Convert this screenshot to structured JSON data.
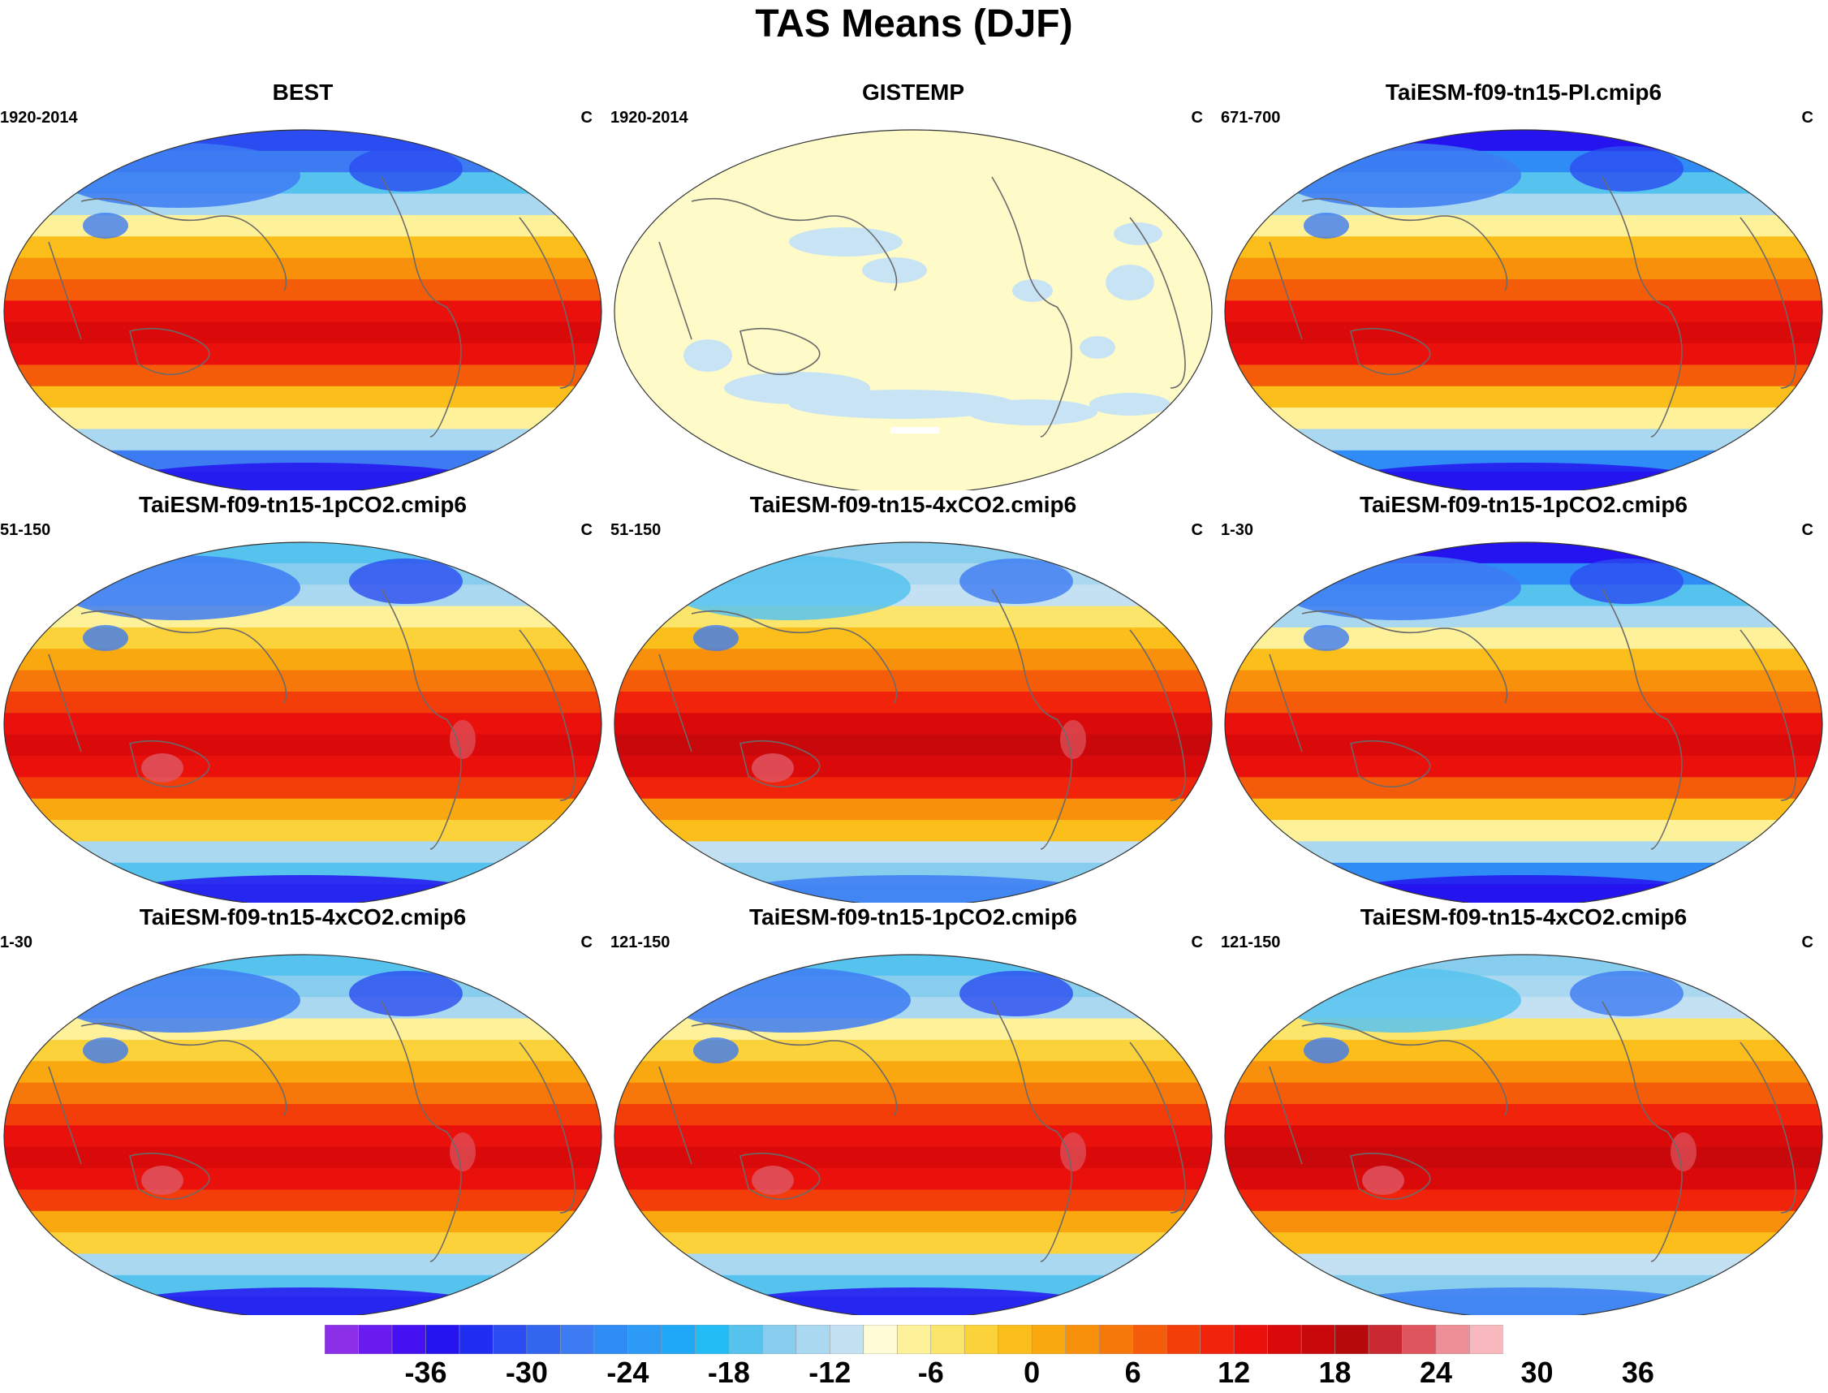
{
  "title": "TAS Means (DJF)",
  "units": "C",
  "panels": [
    {
      "title": "BEST",
      "period": "1920-2014",
      "units": "C",
      "style": "obs"
    },
    {
      "title": "GISTEMP",
      "period": "1920-2014",
      "units": "C",
      "style": "gistemp"
    },
    {
      "title": "TaiESM-f09-tn15-PI.cmip6",
      "period": "671-700",
      "units": "C",
      "style": "cold"
    },
    {
      "title": "TaiESM-f09-tn15-1pCO2.cmip6",
      "period": "51-150",
      "units": "C",
      "style": "warm"
    },
    {
      "title": "TaiESM-f09-tn15-4xCO2.cmip6",
      "period": "51-150",
      "units": "C",
      "style": "hot"
    },
    {
      "title": "TaiESM-f09-tn15-1pCO2.cmip6",
      "period": "1-30",
      "units": "C",
      "style": "cold"
    },
    {
      "title": "TaiESM-f09-tn15-4xCO2.cmip6",
      "period": "1-30",
      "units": "C",
      "style": "warm"
    },
    {
      "title": "TaiESM-f09-tn15-1pCO2.cmip6",
      "period": "121-150",
      "units": "C",
      "style": "warm"
    },
    {
      "title": "TaiESM-f09-tn15-4xCO2.cmip6",
      "period": "121-150",
      "units": "C",
      "style": "hot"
    }
  ],
  "colorbar": {
    "ticks": [
      "-36",
      "-30",
      "-24",
      "-18",
      "-12",
      "-6",
      "0",
      "6",
      "12",
      "18",
      "24",
      "30",
      "36"
    ],
    "colors": [
      "#8d2ee8",
      "#6a1bef",
      "#4510f2",
      "#2514f0",
      "#1f2ef0",
      "#2a4cf0",
      "#3366ee",
      "#3d7bf2",
      "#2f8bf5",
      "#2d9af6",
      "#1ea8f7",
      "#22bbf4",
      "#56c3ef",
      "#86cdee",
      "#a9d8f0",
      "#c4e1f3",
      "#fefcd6",
      "#fdf29a",
      "#fbe56a",
      "#fbd23a",
      "#fbbe1a",
      "#f9a80f",
      "#f8900c",
      "#f7780a",
      "#f55c0a",
      "#f33e0a",
      "#f1230a",
      "#ea100c",
      "#da0a0b",
      "#c8080b",
      "#b5090c",
      "#c92a32",
      "#de5560",
      "#ee8e96",
      "#f8b8be"
    ]
  }
}
